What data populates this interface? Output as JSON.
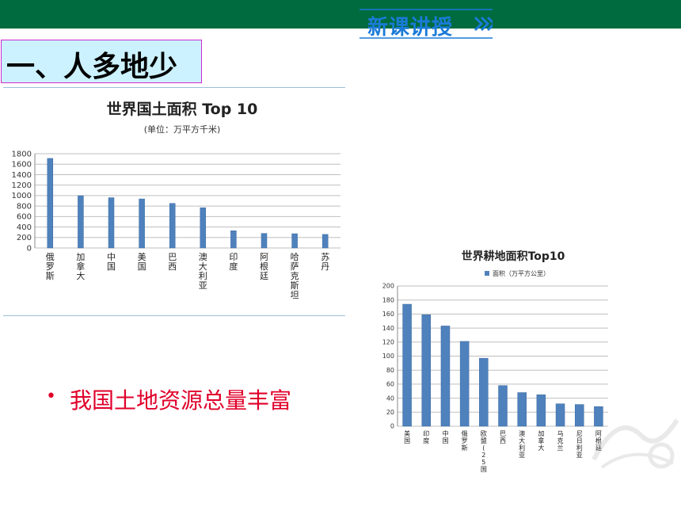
{
  "header": {
    "badge_label": "新课讲授"
  },
  "section_title": "一、人多地少",
  "bullet": "我国土地资源总量丰富",
  "colors": {
    "topbar": "#006b3f",
    "accent_blue": "#1a7bd8",
    "bullet_red": "#e0002a",
    "bar_blue": "#4f81bd"
  },
  "chart_data": [
    {
      "type": "bar",
      "title": "世界国土面积 Top 10",
      "subtitle": "(单位：万平方千米)",
      "categories": [
        "俄罗斯",
        "加拿大",
        "中国",
        "美国",
        "巴西",
        "澳大利亚",
        "印度",
        "阿根廷",
        "哈萨克斯坦",
        "苏丹"
      ],
      "values": [
        1710,
        998,
        960,
        937,
        851,
        769,
        329,
        278,
        272,
        259
      ],
      "y_ticks": [
        "0",
        "200",
        "400",
        "600",
        "800",
        "1000",
        "1200",
        "1400",
        "1600",
        "1800"
      ],
      "ylim": [
        0,
        1800
      ],
      "grid": true
    },
    {
      "type": "bar",
      "title": "世界耕地面积Top10",
      "legend": "面积（万平方公里）",
      "categories": [
        "美国",
        "印度",
        "中国",
        "俄罗斯",
        "欧盟(25国)",
        "巴西",
        "澳大利亚",
        "加拿大",
        "乌克兰",
        "尼日利亚",
        "阿根廷"
      ],
      "values": [
        174,
        159,
        143,
        121,
        97,
        58,
        48,
        45,
        32,
        31,
        28
      ],
      "y_ticks": [
        "0",
        "20",
        "40",
        "60",
        "80",
        "100",
        "120",
        "140",
        "160",
        "180",
        "200"
      ],
      "ylim": [
        0,
        200
      ],
      "grid": true
    }
  ]
}
